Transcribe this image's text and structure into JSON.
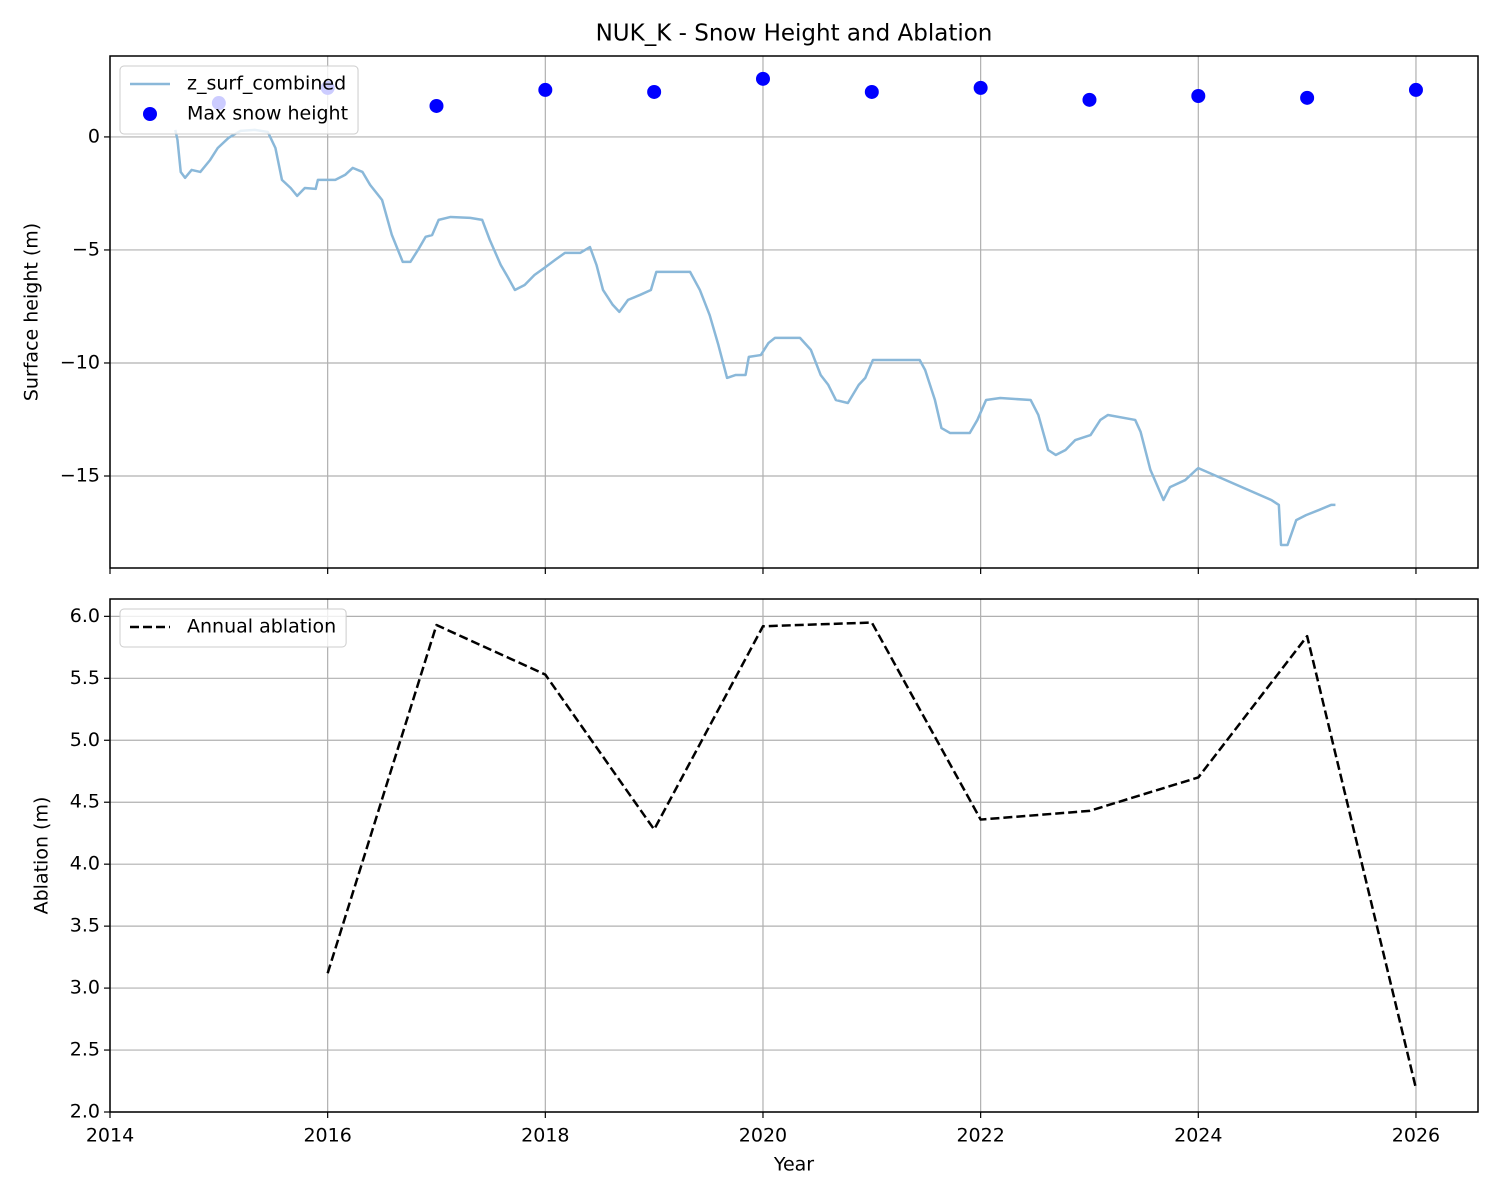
{
  "chart_data": [
    {
      "type": "line",
      "title": "NUK_K - Snow Height and Ablation",
      "ylabel": "Surface height (m)",
      "ylim": [
        -19.07,
        3.58
      ],
      "yticks": [
        {
          "value": -15,
          "label": "−15"
        },
        {
          "value": -10,
          "label": "−10"
        },
        {
          "value": -5,
          "label": "−5"
        },
        0
      ],
      "grid": true,
      "legend": "upper-left",
      "series": [
        {
          "name": "z_surf_combined",
          "type": "line",
          "color": "#8ab8d9",
          "x": [
            2014.6,
            2014.62,
            2014.65,
            2014.69,
            2014.75,
            2014.83,
            2014.92,
            2014.99,
            2015.09,
            2015.2,
            2015.33,
            2015.45,
            2015.52,
            2015.58,
            2015.66,
            2015.72,
            2015.79,
            2015.89,
            2015.91,
            2016.07,
            2016.16,
            2016.23,
            2016.32,
            2016.39,
            2016.5,
            2016.59,
            2016.69,
            2016.76,
            2016.83,
            2016.9,
            2016.96,
            2017.02,
            2017.13,
            2017.31,
            2017.42,
            2017.49,
            2017.59,
            2017.66,
            2017.72,
            2017.81,
            2017.9,
            2017.99,
            2018.09,
            2018.18,
            2018.32,
            2018.41,
            2018.47,
            2018.53,
            2018.62,
            2018.68,
            2018.76,
            2018.87,
            2018.97,
            2019.02,
            2019.15,
            2019.33,
            2019.42,
            2019.51,
            2019.59,
            2019.67,
            2019.75,
            2019.84,
            2019.87,
            2019.98,
            2020.05,
            2020.11,
            2020.34,
            2020.44,
            2020.53,
            2020.6,
            2020.67,
            2020.78,
            2020.88,
            2020.94,
            2021.01,
            2021.26,
            2021.44,
            2021.49,
            2021.58,
            2021.64,
            2021.72,
            2021.9,
            2021.97,
            2022.05,
            2022.18,
            2022.46,
            2022.53,
            2022.62,
            2022.69,
            2022.78,
            2022.87,
            2023.01,
            2023.1,
            2023.17,
            2023.42,
            2023.47,
            2023.56,
            2023.64,
            2023.68,
            2023.74,
            2023.88,
            2023.98,
            2024.0,
            2024.67,
            2024.74,
            2024.76,
            2024.82,
            2024.9,
            2024.99,
            2025.11,
            2025.22,
            2025.26
          ],
          "values": [
            0.31,
            -0.13,
            -1.55,
            -1.81,
            -1.46,
            -1.55,
            -1.02,
            -0.49,
            -0.04,
            0.27,
            0.31,
            0.22,
            -0.49,
            -1.9,
            -2.26,
            -2.61,
            -2.26,
            -2.3,
            -1.9,
            -1.9,
            -1.68,
            -1.37,
            -1.55,
            -2.12,
            -2.79,
            -4.34,
            -5.53,
            -5.53,
            -5.0,
            -4.42,
            -4.34,
            -3.67,
            -3.54,
            -3.58,
            -3.67,
            -4.56,
            -5.66,
            -6.24,
            -6.77,
            -6.55,
            -6.11,
            -5.8,
            -5.44,
            -5.13,
            -5.13,
            -4.87,
            -5.66,
            -6.77,
            -7.43,
            -7.74,
            -7.21,
            -6.99,
            -6.77,
            -5.97,
            -5.97,
            -5.97,
            -6.77,
            -7.88,
            -9.2,
            -10.66,
            -10.53,
            -10.53,
            -9.73,
            -9.65,
            -9.12,
            -8.89,
            -8.89,
            -9.42,
            -10.53,
            -10.97,
            -11.64,
            -11.77,
            -10.97,
            -10.66,
            -9.87,
            -9.87,
            -9.87,
            -10.31,
            -11.64,
            -12.88,
            -13.1,
            -13.1,
            -12.52,
            -11.64,
            -11.55,
            -11.64,
            -12.3,
            -13.85,
            -14.07,
            -13.85,
            -13.41,
            -13.19,
            -12.52,
            -12.3,
            -12.52,
            -13.05,
            -14.73,
            -15.62,
            -16.06,
            -15.49,
            -15.18,
            -14.73,
            -14.65,
            -16.06,
            -16.28,
            -18.05,
            -18.05,
            -16.95,
            -16.73,
            -16.5,
            -16.28,
            -16.28
          ]
        },
        {
          "name": "Max snow height",
          "type": "scatter",
          "color": "#0000ff",
          "x": [
            2015,
            2016,
            2017,
            2018,
            2019,
            2020,
            2021,
            2022,
            2023,
            2024,
            2025,
            2026
          ],
          "values": [
            1.5,
            2.17,
            1.37,
            2.08,
            1.99,
            2.57,
            1.99,
            2.17,
            1.64,
            1.81,
            1.73,
            2.08
          ]
        }
      ]
    },
    {
      "type": "line",
      "xlabel": "Year",
      "ylabel": "Ablation (m)",
      "xlim": [
        2014,
        2026.57
      ],
      "xticks": [
        2014,
        2016,
        2018,
        2020,
        2022,
        2024,
        2026
      ],
      "ylim": [
        2.0,
        6.14
      ],
      "yticks": [
        {
          "value": 2,
          "label": "2.0"
        },
        2.5,
        {
          "value": 3,
          "label": "3.0"
        },
        3.5,
        {
          "value": 4,
          "label": "4.0"
        },
        4.5,
        {
          "value": 5,
          "label": "5.0"
        },
        5.5,
        {
          "value": 6,
          "label": "6.0"
        }
      ],
      "grid": true,
      "legend": "upper-left",
      "series": [
        {
          "name": "Annual ablation",
          "type": "line",
          "color": "#000000",
          "linestyle": "dashed",
          "x": [
            2016,
            2017,
            2018,
            2019,
            2020,
            2021,
            2022,
            2023,
            2024,
            2025,
            2026
          ],
          "values": [
            3.12,
            5.93,
            5.53,
            4.28,
            5.92,
            5.95,
            4.36,
            4.43,
            4.7,
            5.84,
            2.19
          ]
        }
      ]
    }
  ]
}
